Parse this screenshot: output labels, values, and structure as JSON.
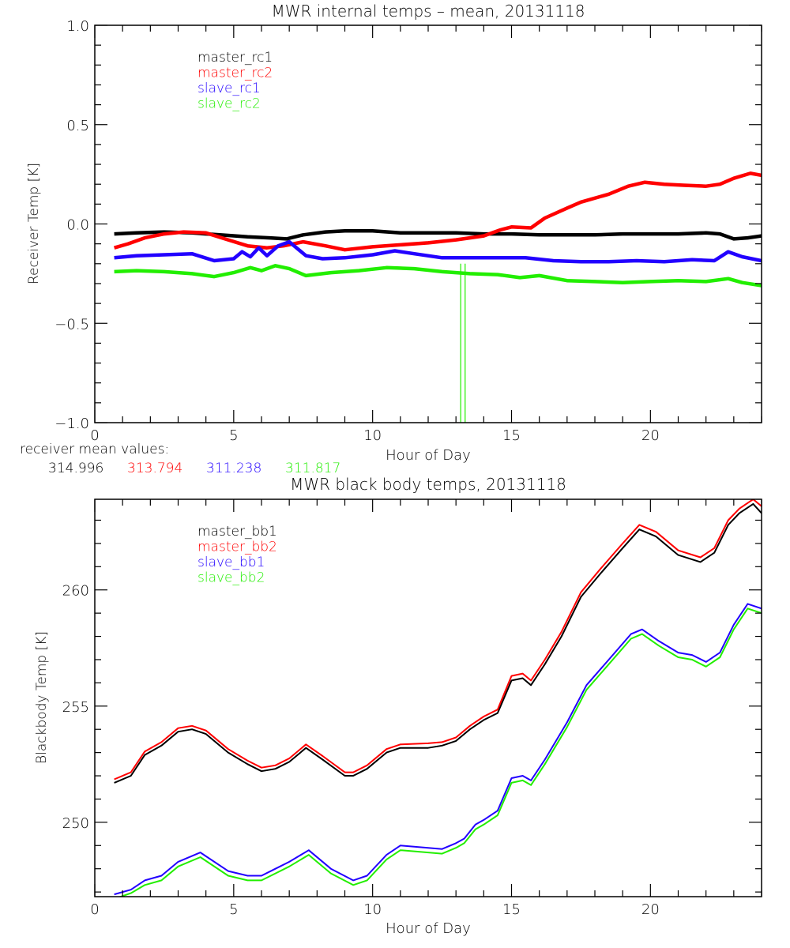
{
  "chart_data": [
    {
      "type": "line",
      "title": "MWR internal temps – mean, 20131118",
      "xlabel": "Hour of Day",
      "ylabel": "Receiver Temp [K]",
      "xlim": [
        0,
        24
      ],
      "ylim": [
        -1.0,
        1.0
      ],
      "xticks": [
        0,
        5,
        10,
        15,
        20
      ],
      "xtick_labels": [
        "0",
        "5",
        "10",
        "15",
        "20"
      ],
      "x_minor_step": 1,
      "yticks": [
        -1.0,
        -0.5,
        0.0,
        0.5,
        1.0
      ],
      "ytick_labels": [
        "-1.0",
        "-0.5",
        "0.0",
        "0.5",
        "1.0"
      ],
      "y_minor_step": 0.1,
      "grid": false,
      "legend_position": "top-left",
      "series": [
        {
          "name": "master_rc1",
          "color": "#000000",
          "x": [
            0.7,
            1.5,
            2.5,
            3.5,
            4.5,
            5.5,
            6.3,
            6.9,
            7.5,
            8.3,
            9.0,
            10.0,
            11.0,
            12.0,
            13.0,
            14.0,
            15.0,
            16.0,
            17.0,
            18.0,
            19.0,
            20.0,
            21.0,
            22.0,
            22.5,
            23.0,
            23.5,
            24.0
          ],
          "y": [
            -0.05,
            -0.045,
            -0.04,
            -0.045,
            -0.055,
            -0.065,
            -0.07,
            -0.075,
            -0.055,
            -0.04,
            -0.035,
            -0.035,
            -0.045,
            -0.045,
            -0.045,
            -0.05,
            -0.05,
            -0.055,
            -0.055,
            -0.055,
            -0.05,
            -0.05,
            -0.05,
            -0.045,
            -0.05,
            -0.075,
            -0.07,
            -0.06
          ]
        },
        {
          "name": "master_rc2",
          "color": "#ff0000",
          "x": [
            0.7,
            1.2,
            1.8,
            2.5,
            3.2,
            4.0,
            4.8,
            5.5,
            6.2,
            6.8,
            7.5,
            8.3,
            9.0,
            10.0,
            11.0,
            12.0,
            13.0,
            14.0,
            14.6,
            15.0,
            15.7,
            16.2,
            17.0,
            17.5,
            18.5,
            19.2,
            19.8,
            20.5,
            21.2,
            22.0,
            22.5,
            23.0,
            23.6,
            24.0
          ],
          "y": [
            -0.12,
            -0.1,
            -0.07,
            -0.05,
            -0.04,
            -0.045,
            -0.08,
            -0.11,
            -0.12,
            -0.11,
            -0.09,
            -0.11,
            -0.13,
            -0.115,
            -0.105,
            -0.095,
            -0.08,
            -0.06,
            -0.03,
            -0.015,
            -0.02,
            0.03,
            0.08,
            0.11,
            0.15,
            0.19,
            0.21,
            0.2,
            0.195,
            0.19,
            0.2,
            0.23,
            0.255,
            0.245
          ]
        },
        {
          "name": "slave_rc1",
          "color": "#2200ff",
          "x": [
            0.7,
            1.5,
            2.5,
            3.5,
            4.3,
            5.0,
            5.3,
            5.6,
            5.9,
            6.2,
            6.6,
            7.0,
            7.6,
            8.2,
            9.0,
            10.0,
            10.8,
            11.5,
            12.5,
            13.5,
            14.5,
            15.5,
            16.5,
            17.5,
            18.5,
            19.5,
            20.5,
            21.5,
            22.3,
            22.8,
            23.3,
            24.0
          ],
          "y": [
            -0.17,
            -0.16,
            -0.155,
            -0.15,
            -0.185,
            -0.175,
            -0.14,
            -0.165,
            -0.12,
            -0.16,
            -0.11,
            -0.09,
            -0.16,
            -0.175,
            -0.17,
            -0.155,
            -0.135,
            -0.15,
            -0.17,
            -0.17,
            -0.17,
            -0.17,
            -0.185,
            -0.19,
            -0.19,
            -0.185,
            -0.19,
            -0.18,
            -0.185,
            -0.14,
            -0.165,
            -0.185
          ]
        },
        {
          "name": "slave_rc2",
          "color": "#22ee00",
          "x": [
            0.7,
            1.5,
            2.5,
            3.5,
            4.3,
            5.0,
            5.6,
            6.0,
            6.5,
            7.0,
            7.6,
            8.5,
            9.5,
            10.5,
            11.5,
            12.5,
            13.5,
            14.5,
            15.3,
            16.0,
            17.0,
            18.0,
            19.0,
            20.0,
            21.0,
            22.0,
            22.8,
            23.3,
            24.0
          ],
          "y": [
            -0.24,
            -0.235,
            -0.24,
            -0.25,
            -0.265,
            -0.245,
            -0.22,
            -0.235,
            -0.21,
            -0.225,
            -0.26,
            -0.245,
            -0.235,
            -0.22,
            -0.225,
            -0.24,
            -0.25,
            -0.255,
            -0.27,
            -0.26,
            -0.285,
            -0.29,
            -0.295,
            -0.29,
            -0.285,
            -0.29,
            -0.275,
            -0.295,
            -0.31
          ]
        }
      ],
      "spike": {
        "series": "slave_rc2",
        "x": 13.25,
        "y_from": -0.2,
        "y_to": -1.0
      },
      "annotation": {
        "label": "receiver mean values:",
        "values": [
          {
            "text": "314.996",
            "color": "#000000"
          },
          {
            "text": "313.794",
            "color": "#ff0000"
          },
          {
            "text": "311.238",
            "color": "#2200ff"
          },
          {
            "text": "311.817",
            "color": "#22ee00"
          }
        ]
      }
    },
    {
      "type": "line",
      "title": "MWR black body temps, 20131118",
      "xlabel": "Hour of Day",
      "ylabel": "Blackbody Temp [K]",
      "xlim": [
        0,
        24
      ],
      "ylim": [
        246.8,
        263.9
      ],
      "xticks": [
        0,
        5,
        10,
        15,
        20
      ],
      "xtick_labels": [
        "0",
        "5",
        "10",
        "15",
        "20"
      ],
      "x_minor_step": 1,
      "yticks": [
        250,
        255,
        260
      ],
      "ytick_labels": [
        "250",
        "255",
        "260"
      ],
      "y_minor_step": 1,
      "grid": false,
      "legend_position": "top-left",
      "series": [
        {
          "name": "master_bb1",
          "color": "#000000",
          "x": [
            0.7,
            1.3,
            1.8,
            2.4,
            3.0,
            3.5,
            4.0,
            4.8,
            5.5,
            6.0,
            6.5,
            7.0,
            7.6,
            8.2,
            9.0,
            9.3,
            9.8,
            10.5,
            11.0,
            12.0,
            12.5,
            13.0,
            13.5,
            14.0,
            14.5,
            15.0,
            15.4,
            15.7,
            16.2,
            16.8,
            17.5,
            18.2,
            19.0,
            19.6,
            20.2,
            21.0,
            21.8,
            22.3,
            22.8,
            23.2,
            23.7,
            24.0
          ],
          "y": [
            251.7,
            252.0,
            252.9,
            253.3,
            253.9,
            254.0,
            253.8,
            253.0,
            252.5,
            252.2,
            252.3,
            252.6,
            253.2,
            252.7,
            252.0,
            252.0,
            252.3,
            253.0,
            253.2,
            253.2,
            253.3,
            253.5,
            254.0,
            254.4,
            254.7,
            256.1,
            256.2,
            255.9,
            256.8,
            258.0,
            259.7,
            260.7,
            261.8,
            262.6,
            262.3,
            261.5,
            261.2,
            261.6,
            262.8,
            263.3,
            263.7,
            263.3
          ]
        },
        {
          "name": "master_bb2",
          "color": "#ff0000",
          "x": [
            0.7,
            1.3,
            1.8,
            2.4,
            3.0,
            3.5,
            4.0,
            4.8,
            5.5,
            6.0,
            6.5,
            7.0,
            7.6,
            8.2,
            9.0,
            9.3,
            9.8,
            10.5,
            11.0,
            12.0,
            12.5,
            13.0,
            13.5,
            14.0,
            14.5,
            15.0,
            15.4,
            15.7,
            16.2,
            16.8,
            17.5,
            18.2,
            19.0,
            19.6,
            20.2,
            21.0,
            21.8,
            22.3,
            22.8,
            23.2,
            23.7,
            24.0
          ],
          "y": [
            251.85,
            252.15,
            253.05,
            253.45,
            254.05,
            254.15,
            253.95,
            253.15,
            252.65,
            252.35,
            252.45,
            252.75,
            253.35,
            252.85,
            252.15,
            252.15,
            252.45,
            253.15,
            253.35,
            253.4,
            253.45,
            253.65,
            254.15,
            254.55,
            254.85,
            256.3,
            256.4,
            256.1,
            257.0,
            258.2,
            259.9,
            260.9,
            262.0,
            262.8,
            262.5,
            261.7,
            261.4,
            261.8,
            263.0,
            263.5,
            263.9,
            263.6
          ]
        },
        {
          "name": "slave_bb1",
          "color": "#2200ff",
          "x": [
            0.7,
            1.3,
            1.8,
            2.4,
            3.0,
            3.8,
            4.8,
            5.5,
            6.0,
            6.5,
            7.0,
            7.7,
            8.5,
            9.3,
            9.8,
            10.5,
            11.0,
            12.0,
            12.5,
            13.0,
            13.3,
            13.7,
            14.0,
            14.5,
            15.0,
            15.4,
            15.7,
            16.2,
            17.0,
            17.7,
            18.5,
            19.3,
            19.7,
            20.3,
            21.0,
            21.5,
            22.0,
            22.5,
            23.0,
            23.5,
            24.0
          ],
          "y": [
            246.9,
            247.1,
            247.5,
            247.7,
            248.3,
            248.7,
            247.9,
            247.7,
            247.7,
            248.0,
            248.3,
            248.8,
            248.0,
            247.5,
            247.7,
            248.6,
            249.0,
            248.9,
            248.85,
            249.1,
            249.3,
            249.9,
            250.1,
            250.5,
            251.9,
            252.0,
            251.8,
            252.7,
            254.3,
            255.9,
            257.0,
            258.1,
            258.3,
            257.8,
            257.3,
            257.2,
            256.9,
            257.3,
            258.5,
            259.4,
            259.2
          ]
        },
        {
          "name": "slave_bb2",
          "color": "#22ee00",
          "x": [
            0.7,
            1.3,
            1.8,
            2.4,
            3.0,
            3.8,
            4.8,
            5.5,
            6.0,
            6.5,
            7.0,
            7.7,
            8.5,
            9.3,
            9.8,
            10.5,
            11.0,
            12.0,
            12.5,
            13.0,
            13.3,
            13.7,
            14.0,
            14.5,
            15.0,
            15.4,
            15.7,
            16.2,
            17.0,
            17.7,
            18.5,
            19.3,
            19.7,
            20.3,
            21.0,
            21.5,
            22.0,
            22.5,
            23.0,
            23.5,
            24.0
          ],
          "y": [
            246.7,
            246.95,
            247.3,
            247.5,
            248.1,
            248.5,
            247.7,
            247.5,
            247.5,
            247.8,
            248.1,
            248.6,
            247.8,
            247.3,
            247.5,
            248.4,
            248.8,
            248.7,
            248.65,
            248.9,
            249.1,
            249.7,
            249.9,
            250.3,
            251.7,
            251.8,
            251.6,
            252.5,
            254.1,
            255.7,
            256.8,
            257.9,
            258.1,
            257.6,
            257.1,
            257.0,
            256.7,
            257.1,
            258.3,
            259.2,
            259.0
          ]
        }
      ]
    }
  ]
}
